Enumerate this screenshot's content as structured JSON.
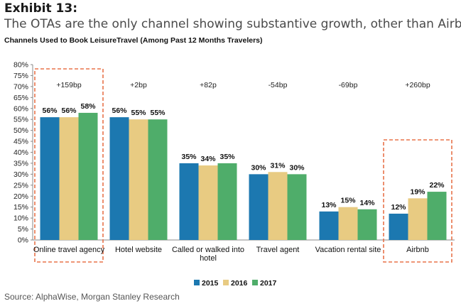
{
  "exhibit_label": "Exhibit 13:",
  "subtitle": "The OTAs are the only channel showing substantive growth, other than Airbnb",
  "source": "Source: AlphaWise, Morgan Stanley Research",
  "colors": {
    "2015": "#1c78b0",
    "2016": "#e8cb82",
    "2017": "#4fad6a",
    "highlight": "#e8734a"
  },
  "chart_data": {
    "type": "bar",
    "title": "Channels Used to Book LeisureTravel (Among Past 12 Months Travelers)",
    "xlabel": "",
    "ylabel": "",
    "ylim": [
      0,
      80
    ],
    "yticks": [
      "0%",
      "5%",
      "10%",
      "15%",
      "20%",
      "25%",
      "30%",
      "35%",
      "40%",
      "45%",
      "50%",
      "55%",
      "60%",
      "65%",
      "70%",
      "75%",
      "80%"
    ],
    "grid": false,
    "legend_position": "bottom",
    "categories": [
      [
        "Online travel agency"
      ],
      [
        "Hotel website"
      ],
      [
        "Called or walked into",
        "hotel"
      ],
      [
        "Travel agent"
      ],
      [
        "Vacation rental site"
      ],
      [
        "Airbnb"
      ]
    ],
    "series": [
      {
        "name": "2015",
        "values": [
          56,
          56,
          35,
          30,
          13,
          12
        ],
        "labels": [
          "56%",
          "56%",
          "35%",
          "30%",
          "13%",
          "12%"
        ]
      },
      {
        "name": "2016",
        "values": [
          56,
          55,
          34,
          31,
          15,
          19
        ],
        "labels": [
          "56%",
          "55%",
          "34%",
          "31%",
          "15%",
          "19%"
        ]
      },
      {
        "name": "2017",
        "values": [
          58,
          55,
          35,
          30,
          14,
          22
        ],
        "labels": [
          "58%",
          "55%",
          "35%",
          "30%",
          "14%",
          "22%"
        ]
      }
    ],
    "annotations": [
      "+159bp",
      "+2bp",
      "+82p",
      "-54bp",
      "-69bp",
      "+260bp"
    ],
    "highlighted_categories": [
      "Online travel agency",
      "Airbnb"
    ]
  }
}
